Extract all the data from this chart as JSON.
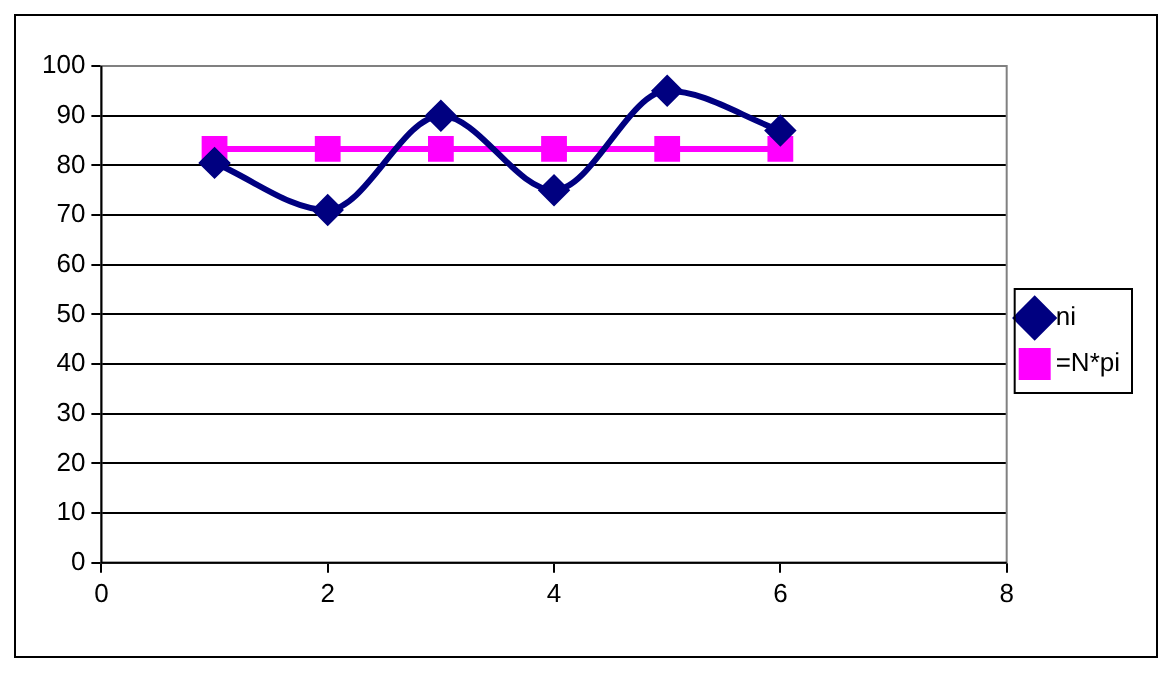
{
  "chart_data": {
    "type": "line",
    "x": [
      1,
      2,
      3,
      4,
      5,
      6
    ],
    "series": [
      {
        "name": "ni",
        "color": "#000080",
        "marker": "diamond",
        "values": [
          80.5,
          71,
          90,
          75,
          95,
          87
        ]
      },
      {
        "name": "=N*pi",
        "color": "#ff00ff",
        "marker": "square",
        "values": [
          83.3,
          83.3,
          83.3,
          83.3,
          83.3,
          83.3
        ]
      }
    ],
    "xlim": [
      0,
      8
    ],
    "xticks": [
      0,
      2,
      4,
      6,
      8
    ],
    "ylim": [
      0,
      100
    ],
    "yticks": [
      0,
      10,
      20,
      30,
      40,
      50,
      60,
      70,
      80,
      90,
      100
    ],
    "grid": "y",
    "legend": "right"
  }
}
